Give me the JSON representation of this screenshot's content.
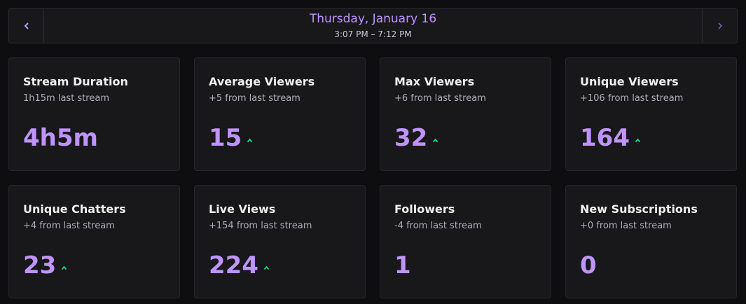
{
  "header": {
    "date": "Thursday, January 16",
    "time_range": "3:07 PM – 7:12 PM"
  },
  "cards": [
    {
      "title": "Stream Duration",
      "subtitle": "1h15m last stream",
      "value": "4h5m"
    },
    {
      "title": "Average Viewers",
      "subtitle": "+5 from last stream",
      "value": 15,
      "trend": "up"
    },
    {
      "title": "Max Viewers",
      "subtitle": "+6 from last stream",
      "value": 32,
      "trend": "up"
    },
    {
      "title": "Unique Viewers",
      "subtitle": "+106 from last stream",
      "value": 164,
      "trend": "up"
    },
    {
      "title": "Unique Chatters",
      "subtitle": "+4 from last stream",
      "value": 23,
      "trend": "up"
    },
    {
      "title": "Live Views",
      "subtitle": "+154 from last stream",
      "value": 224,
      "trend": "up"
    },
    {
      "title": "Followers",
      "subtitle": "-4 from last stream",
      "value": 1
    },
    {
      "title": "New Subscriptions",
      "subtitle": "+0 from last stream",
      "value": 0
    }
  ]
}
